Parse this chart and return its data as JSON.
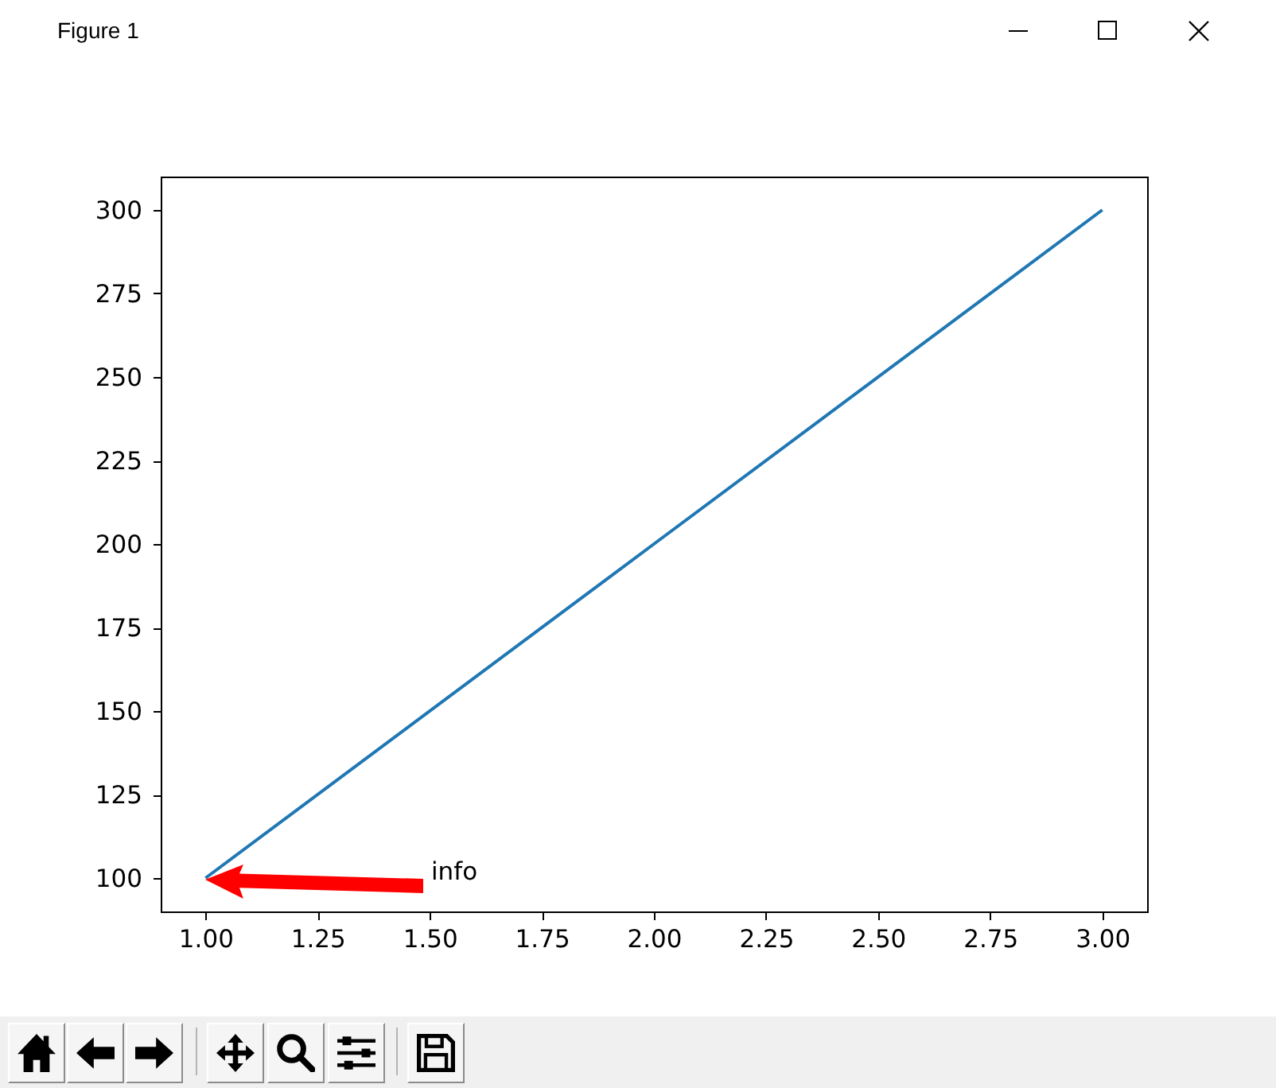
{
  "chart_data": {
    "type": "line",
    "title": "Figure 1",
    "x": [
      1,
      2,
      3
    ],
    "series": [
      {
        "color": "#1f77b4",
        "values": [
          100,
          200,
          300
        ]
      }
    ],
    "xlim": [
      0.9,
      3.1
    ],
    "xticks": [
      {
        "value": 1,
        "label": "1.00"
      },
      1.25,
      {
        "value": 1.5,
        "label": "1.50"
      },
      1.75,
      {
        "value": 2,
        "label": "2.00"
      },
      2.25,
      {
        "value": 2.5,
        "label": "2.50"
      },
      2.75,
      {
        "value": 3,
        "label": "3.00"
      }
    ],
    "ylim": [
      90,
      310
    ],
    "yticks": [
      100,
      125,
      150,
      175,
      200,
      225,
      250,
      275,
      300
    ],
    "annotations": [
      "info"
    ]
  }
}
